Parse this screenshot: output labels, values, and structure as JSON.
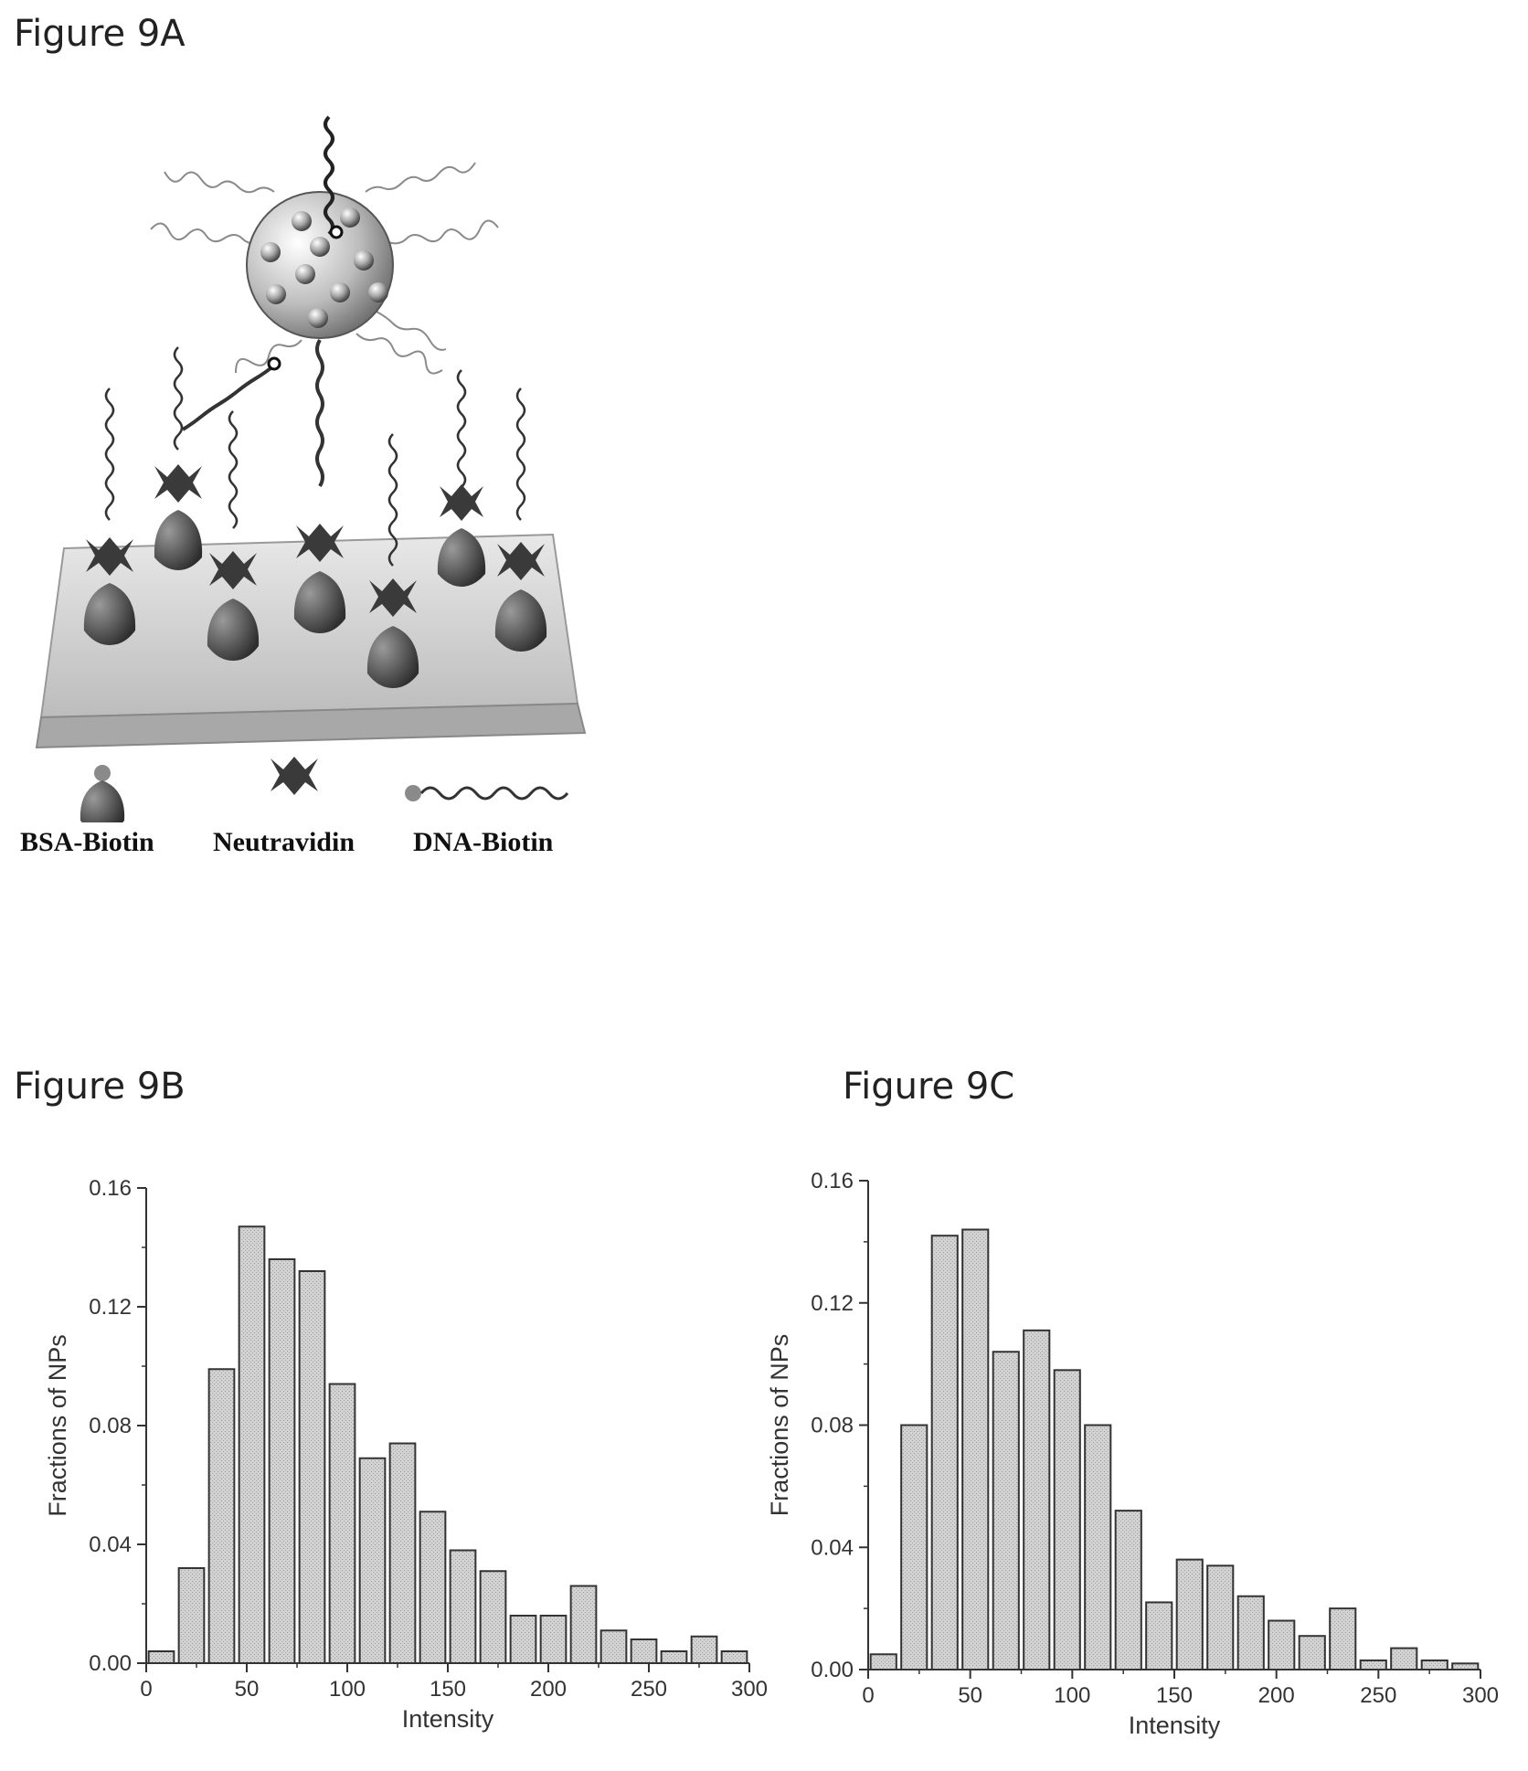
{
  "figures": {
    "a_title": "Figure 9A",
    "b_title": "Figure 9B",
    "c_title": "Figure 9C"
  },
  "legend": {
    "bsa": "BSA-Biotin",
    "neutravidin": "Neutravidin",
    "dna": "DNA-Biotin"
  },
  "chart_data": [
    {
      "id": "figure-9b",
      "type": "bar",
      "title": "",
      "xlabel": "Intensity",
      "ylabel": "Fractions of NPs",
      "xlim": [
        0,
        300
      ],
      "ylim": [
        0,
        0.16
      ],
      "xticks": [
        0,
        50,
        100,
        150,
        200,
        250,
        300
      ],
      "yticks": [
        0.0,
        0.04,
        0.08,
        0.12,
        0.16
      ],
      "bin_width": 15,
      "bin_centers": [
        7.5,
        22.5,
        37.5,
        52.5,
        67.5,
        82.5,
        97.5,
        112.5,
        127.5,
        142.5,
        157.5,
        172.5,
        187.5,
        202.5,
        217.5,
        232.5,
        247.5,
        262.5,
        277.5,
        292.5
      ],
      "values": [
        0.004,
        0.032,
        0.099,
        0.147,
        0.136,
        0.132,
        0.094,
        0.069,
        0.074,
        0.051,
        0.038,
        0.031,
        0.016,
        0.016,
        0.026,
        0.011,
        0.008,
        0.004,
        0.009,
        0.004
      ],
      "grid": false
    },
    {
      "id": "figure-9c",
      "type": "bar",
      "title": "",
      "xlabel": "Intensity",
      "ylabel": "Fractions of NPs",
      "xlim": [
        0,
        300
      ],
      "ylim": [
        0,
        0.16
      ],
      "xticks": [
        0,
        50,
        100,
        150,
        200,
        250,
        300
      ],
      "yticks": [
        0.0,
        0.04,
        0.08,
        0.12,
        0.16
      ],
      "bin_width": 15,
      "bin_centers": [
        7.5,
        22.5,
        37.5,
        52.5,
        67.5,
        82.5,
        97.5,
        112.5,
        127.5,
        142.5,
        157.5,
        172.5,
        187.5,
        202.5,
        217.5,
        232.5,
        247.5,
        262.5,
        277.5,
        292.5
      ],
      "values": [
        0.005,
        0.08,
        0.142,
        0.144,
        0.104,
        0.111,
        0.098,
        0.08,
        0.052,
        0.022,
        0.036,
        0.034,
        0.024,
        0.016,
        0.011,
        0.02,
        0.003,
        0.007,
        0.003,
        0.002
      ],
      "grid": false
    }
  ],
  "colors": {
    "bar_fill": "#cfcfcf",
    "bar_stroke": "#333333",
    "axis": "#333333"
  }
}
